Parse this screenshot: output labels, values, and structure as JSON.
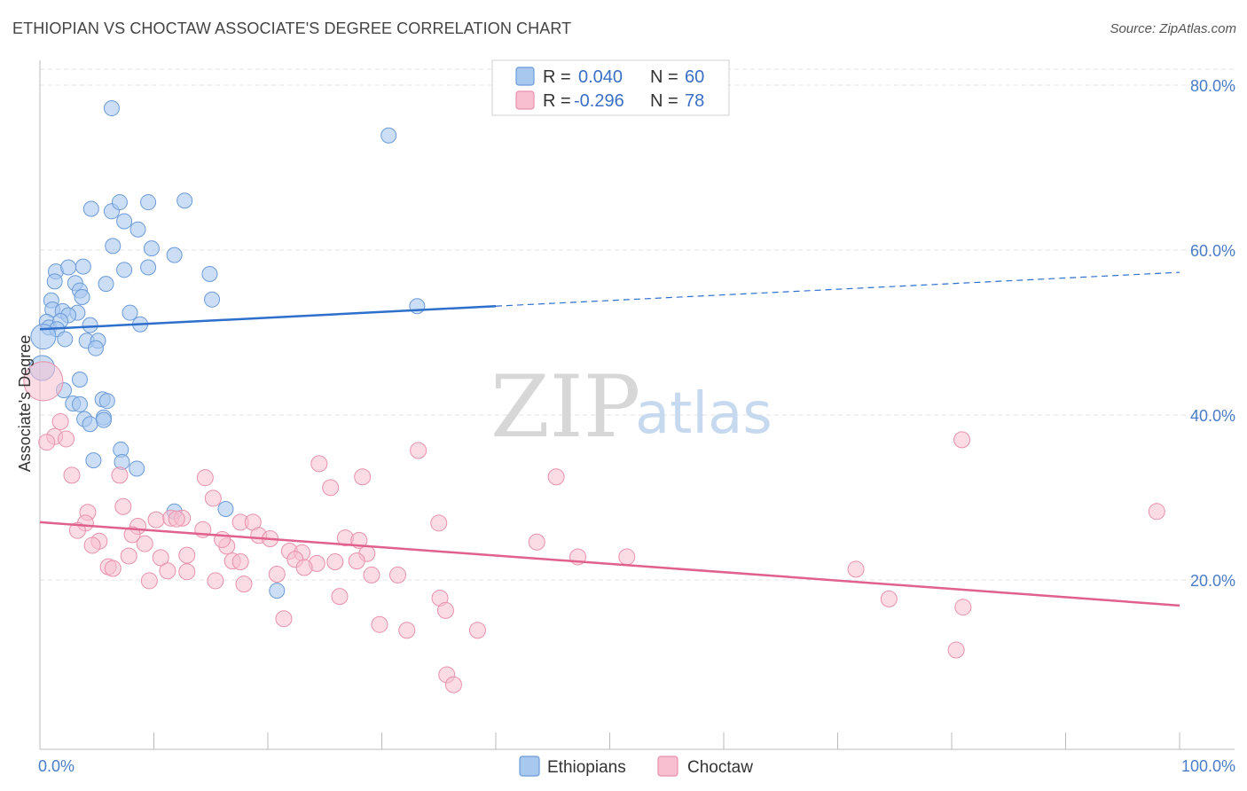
{
  "title": "ETHIOPIAN VS CHOCTAW ASSOCIATE'S DEGREE CORRELATION CHART",
  "source": "Source: ZipAtlas.com",
  "watermark": {
    "zip": "ZIP",
    "atlas": "atlas"
  },
  "colors": {
    "ethiopians_fill": "#a9c8f0",
    "ethiopians_stroke": "#6b9bd8",
    "ethiopians_line": "#2f6fcc",
    "choctaw_fill": "#f7bfd0",
    "choctaw_stroke": "#e891ac",
    "choctaw_line": "#e0608e",
    "tick_label": "#4a7cc7",
    "grid": "#e3e3e3"
  },
  "legend_top": [
    {
      "series": "Ethiopians",
      "r_label": "R = ",
      "r_value": "0.040",
      "n_label": "N = ",
      "n_value": "60"
    },
    {
      "series": "Choctaw",
      "r_label": "R = ",
      "r_value": "-0.296",
      "n_label": "N = ",
      "n_value": "78"
    }
  ],
  "chart_data": {
    "type": "scatter",
    "title": "ETHIOPIAN VS CHOCTAW ASSOCIATE'S DEGREE CORRELATION CHART",
    "xlabel": "",
    "ylabel": "Associate's Degree",
    "xlim": [
      0,
      100
    ],
    "ylim": [
      0,
      85
    ],
    "x_tick_labels": [
      "0.0%",
      "100.0%"
    ],
    "y_ticks": [
      20,
      40,
      60,
      80
    ],
    "y_tick_labels": [
      "20.0%",
      "40.0%",
      "60.0%",
      "80.0%"
    ],
    "grid": "horizontal dashed",
    "legend": "bottom-center",
    "series": [
      {
        "name": "Ethiopians",
        "trend": {
          "x0": 0,
          "y0": 50.4,
          "x1": 40,
          "y1": 53.2,
          "dashed_to_x": 100,
          "dashed_to_y": 57.3
        },
        "points": [
          [
            6.3,
            77.2
          ],
          [
            30.6,
            73.9
          ],
          [
            4.5,
            65.0
          ],
          [
            6.3,
            64.7
          ],
          [
            7.0,
            65.8
          ],
          [
            9.5,
            65.8
          ],
          [
            12.7,
            66.0
          ],
          [
            7.4,
            63.5
          ],
          [
            8.6,
            62.5
          ],
          [
            9.8,
            60.2
          ],
          [
            6.4,
            60.5
          ],
          [
            11.8,
            59.4
          ],
          [
            1.4,
            57.4
          ],
          [
            3.8,
            58.0
          ],
          [
            2.5,
            57.9
          ],
          [
            7.4,
            57.6
          ],
          [
            9.5,
            57.9
          ],
          [
            14.9,
            57.1
          ],
          [
            1.3,
            56.2
          ],
          [
            3.1,
            56.0
          ],
          [
            5.8,
            55.9
          ],
          [
            3.5,
            55.1
          ],
          [
            3.7,
            54.3
          ],
          [
            1.0,
            53.9
          ],
          [
            15.1,
            54.0
          ],
          [
            33.1,
            53.2
          ],
          [
            1.1,
            52.8
          ],
          [
            2.0,
            52.6
          ],
          [
            3.3,
            52.4
          ],
          [
            7.9,
            52.4
          ],
          [
            2.5,
            52.1
          ],
          [
            0.6,
            51.3
          ],
          [
            0.8,
            50.6
          ],
          [
            1.8,
            51.4
          ],
          [
            1.5,
            50.4
          ],
          [
            4.4,
            50.9
          ],
          [
            8.8,
            51.0
          ],
          [
            0.3,
            49.5
          ],
          [
            2.2,
            49.2
          ],
          [
            4.1,
            49.0
          ],
          [
            5.1,
            49.0
          ],
          [
            4.9,
            48.1
          ],
          [
            0.2,
            45.7
          ],
          [
            3.5,
            44.3
          ],
          [
            2.1,
            43.0
          ],
          [
            5.5,
            41.9
          ],
          [
            2.9,
            41.4
          ],
          [
            3.5,
            41.3
          ],
          [
            5.9,
            41.7
          ],
          [
            3.9,
            39.5
          ],
          [
            5.6,
            39.7
          ],
          [
            4.4,
            38.9
          ],
          [
            5.6,
            39.4
          ],
          [
            7.1,
            35.8
          ],
          [
            7.2,
            34.3
          ],
          [
            4.7,
            34.5
          ],
          [
            8.5,
            33.5
          ],
          [
            11.8,
            28.3
          ],
          [
            16.3,
            28.6
          ],
          [
            20.8,
            18.7
          ]
        ]
      },
      {
        "name": "Choctaw",
        "trend": {
          "x0": 0,
          "y0": 27.0,
          "x1": 100,
          "y1": 16.9
        },
        "points": [
          [
            0.3,
            44.1
          ],
          [
            1.8,
            39.2
          ],
          [
            1.3,
            37.4
          ],
          [
            2.3,
            37.1
          ],
          [
            0.6,
            36.7
          ],
          [
            33.2,
            35.7
          ],
          [
            80.9,
            37.0
          ],
          [
            2.8,
            32.7
          ],
          [
            7.0,
            32.7
          ],
          [
            14.5,
            32.4
          ],
          [
            24.5,
            34.1
          ],
          [
            28.3,
            32.5
          ],
          [
            45.3,
            32.5
          ],
          [
            25.5,
            31.2
          ],
          [
            15.2,
            29.9
          ],
          [
            7.3,
            28.9
          ],
          [
            4.2,
            28.2
          ],
          [
            98.0,
            28.3
          ],
          [
            4.0,
            26.9
          ],
          [
            3.3,
            26.0
          ],
          [
            10.2,
            27.3
          ],
          [
            11.5,
            27.5
          ],
          [
            12.5,
            27.5
          ],
          [
            12.0,
            27.4
          ],
          [
            17.6,
            27.0
          ],
          [
            18.7,
            27.0
          ],
          [
            19.2,
            25.4
          ],
          [
            20.2,
            25.0
          ],
          [
            35.0,
            26.9
          ],
          [
            8.6,
            26.5
          ],
          [
            8.1,
            25.5
          ],
          [
            14.3,
            26.1
          ],
          [
            16.4,
            24.1
          ],
          [
            5.2,
            24.7
          ],
          [
            4.6,
            24.2
          ],
          [
            9.2,
            24.4
          ],
          [
            16.0,
            24.9
          ],
          [
            26.8,
            25.1
          ],
          [
            28.0,
            24.8
          ],
          [
            43.6,
            24.6
          ],
          [
            21.9,
            23.5
          ],
          [
            23.0,
            23.3
          ],
          [
            7.8,
            22.9
          ],
          [
            10.6,
            22.7
          ],
          [
            12.9,
            23.0
          ],
          [
            28.7,
            23.2
          ],
          [
            22.4,
            22.5
          ],
          [
            16.9,
            22.3
          ],
          [
            17.6,
            22.2
          ],
          [
            24.3,
            22.0
          ],
          [
            25.9,
            22.2
          ],
          [
            27.8,
            22.3
          ],
          [
            47.2,
            22.8
          ],
          [
            51.5,
            22.8
          ],
          [
            6.0,
            21.6
          ],
          [
            6.4,
            21.4
          ],
          [
            11.2,
            21.1
          ],
          [
            12.9,
            21.0
          ],
          [
            23.2,
            21.5
          ],
          [
            31.4,
            20.6
          ],
          [
            20.8,
            20.7
          ],
          [
            29.1,
            20.6
          ],
          [
            71.6,
            21.3
          ],
          [
            9.6,
            19.9
          ],
          [
            15.4,
            19.9
          ],
          [
            17.9,
            19.5
          ],
          [
            26.3,
            18.0
          ],
          [
            35.1,
            17.8
          ],
          [
            35.6,
            16.3
          ],
          [
            21.4,
            15.3
          ],
          [
            74.5,
            17.7
          ],
          [
            29.8,
            14.6
          ],
          [
            32.2,
            13.9
          ],
          [
            38.4,
            13.9
          ],
          [
            80.4,
            11.5
          ],
          [
            35.7,
            8.5
          ],
          [
            36.3,
            7.3
          ],
          [
            81.0,
            16.7
          ]
        ]
      }
    ]
  },
  "legend_bottom": [
    {
      "label": "Ethiopians"
    },
    {
      "label": "Choctaw"
    }
  ]
}
